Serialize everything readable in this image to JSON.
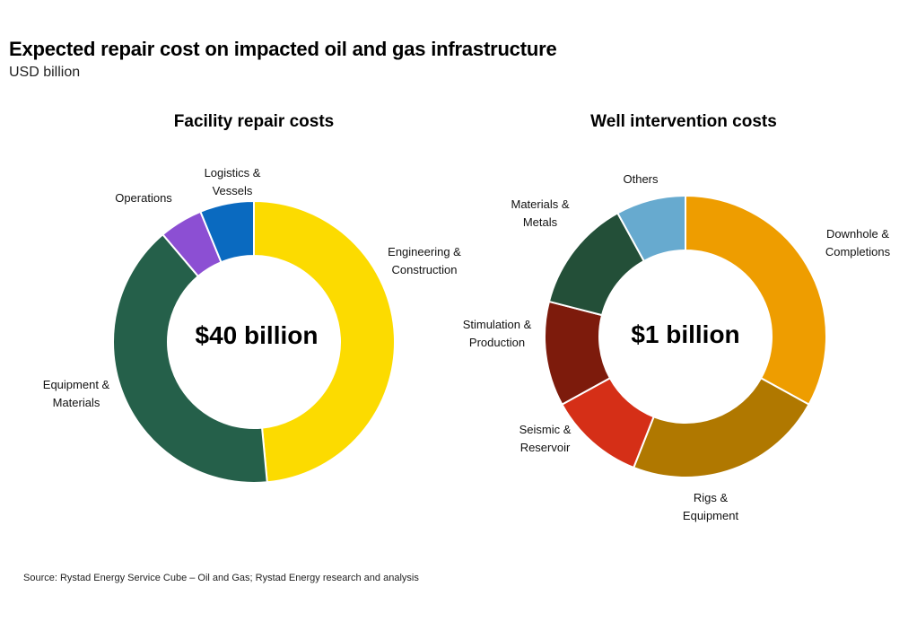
{
  "title": "Expected repair cost on impacted oil and gas infrastructure",
  "subtitle": "USD billion",
  "source": "Source: Rystad Energy Service Cube – Oil and Gas; Rystad Energy research and analysis",
  "chart_data": [
    {
      "type": "pie",
      "title": "Facility repair costs",
      "center_label": "$40 billion",
      "categories": [
        "Engineering & Construction",
        "Equipment & Materials",
        "Operations",
        "Logistics & Vessels"
      ],
      "values": [
        48.5,
        40.3,
        5.0,
        6.2
      ],
      "colors": [
        "#FCDB00",
        "#25604A",
        "#8C4FD3",
        "#0A6AC0"
      ]
    },
    {
      "type": "pie",
      "title": "Well intervention costs",
      "center_label": "$1 billion",
      "categories": [
        "Downhole & Completions",
        "Rigs & Equipment",
        "Seismic & Reservoir",
        "Stimulation & Production",
        "Materials & Metals",
        "Others"
      ],
      "values": [
        33,
        23,
        11,
        12,
        13,
        8
      ],
      "colors": [
        "#EE9D00",
        "#B07800",
        "#D52F17",
        "#7D1B0C",
        "#234F38",
        "#67AACF"
      ]
    }
  ]
}
